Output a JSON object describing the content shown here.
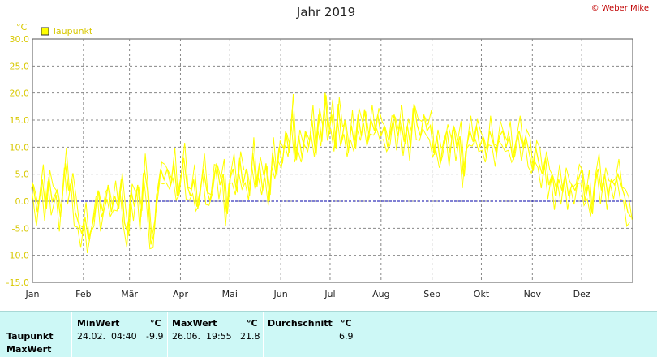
{
  "chart_data": {
    "type": "line",
    "title": "Jahr 2019",
    "copyright": "© Weber Mike",
    "ylabel": "°C",
    "ylim": [
      -15,
      30
    ],
    "yticks": [
      "-15.0",
      "-10.0",
      "-5.0",
      "0.0",
      "5.0",
      "10.0",
      "15.0",
      "20.0",
      "25.0",
      "30.0"
    ],
    "xlim": [
      0,
      365
    ],
    "months": [
      "Jan",
      "Feb",
      "Mär",
      "Apr",
      "Mai",
      "Jun",
      "Jul",
      "Aug",
      "Sep",
      "Okt",
      "Nov",
      "Dez"
    ],
    "month_start_day": [
      0,
      31,
      59,
      90,
      120,
      151,
      181,
      212,
      243,
      273,
      304,
      334
    ],
    "zero_line": 0,
    "grid": true,
    "legend": "top-left",
    "series": [
      {
        "name": "Taupunkt",
        "color": "#ffff00",
        "points": [
          [
            0,
            3.5
          ],
          [
            3,
            -2
          ],
          [
            6,
            4
          ],
          [
            8,
            -1
          ],
          [
            10,
            4.5
          ],
          [
            12,
            0
          ],
          [
            15,
            2
          ],
          [
            17,
            -3
          ],
          [
            20,
            7
          ],
          [
            22,
            2
          ],
          [
            24,
            4
          ],
          [
            26,
            -2
          ],
          [
            28,
            -4
          ],
          [
            30,
            -6
          ],
          [
            32,
            -3
          ],
          [
            34,
            -7
          ],
          [
            36,
            -5
          ],
          [
            38,
            -2
          ],
          [
            40,
            2
          ],
          [
            42,
            -3
          ],
          [
            44,
            -1
          ],
          [
            46,
            3
          ],
          [
            48,
            -2
          ],
          [
            50,
            1
          ],
          [
            52,
            -1
          ],
          [
            54,
            4
          ],
          [
            56,
            -4
          ],
          [
            58,
            -6
          ],
          [
            60,
            2
          ],
          [
            62,
            -1
          ],
          [
            64,
            3
          ],
          [
            66,
            -3
          ],
          [
            68,
            6
          ],
          [
            70,
            2
          ],
          [
            72,
            -8
          ],
          [
            74,
            -6
          ],
          [
            76,
            2
          ],
          [
            78,
            6
          ],
          [
            80,
            4
          ],
          [
            82,
            6
          ],
          [
            84,
            3
          ],
          [
            86,
            7
          ],
          [
            88,
            1
          ],
          [
            90,
            4
          ],
          [
            92,
            8
          ],
          [
            94,
            3
          ],
          [
            96,
            1
          ],
          [
            98,
            4
          ],
          [
            100,
            -1
          ],
          [
            102,
            2
          ],
          [
            104,
            6
          ],
          [
            106,
            2
          ],
          [
            108,
            0
          ],
          [
            110,
            4
          ],
          [
            112,
            7
          ],
          [
            114,
            3
          ],
          [
            116,
            5
          ],
          [
            118,
            -2
          ],
          [
            120,
            4
          ],
          [
            122,
            6
          ],
          [
            124,
            2
          ],
          [
            126,
            8
          ],
          [
            128,
            3
          ],
          [
            130,
            6
          ],
          [
            132,
            1
          ],
          [
            134,
            9
          ],
          [
            136,
            3
          ],
          [
            138,
            7
          ],
          [
            140,
            2
          ],
          [
            142,
            7
          ],
          [
            144,
            0
          ],
          [
            146,
            9
          ],
          [
            148,
            5
          ],
          [
            150,
            10
          ],
          [
            152,
            7
          ],
          [
            154,
            13
          ],
          [
            156,
            9
          ],
          [
            158,
            17
          ],
          [
            160,
            8
          ],
          [
            162,
            12
          ],
          [
            164,
            8
          ],
          [
            166,
            13
          ],
          [
            168,
            10
          ],
          [
            170,
            15
          ],
          [
            172,
            9
          ],
          [
            174,
            16
          ],
          [
            176,
            11
          ],
          [
            178,
            20
          ],
          [
            180,
            12
          ],
          [
            182,
            16
          ],
          [
            184,
            10
          ],
          [
            186,
            18
          ],
          [
            188,
            11
          ],
          [
            190,
            15
          ],
          [
            192,
            9
          ],
          [
            194,
            14
          ],
          [
            196,
            10
          ],
          [
            198,
            16
          ],
          [
            200,
            12
          ],
          [
            202,
            17
          ],
          [
            204,
            11
          ],
          [
            206,
            15
          ],
          [
            208,
            13
          ],
          [
            210,
            16
          ],
          [
            212,
            12
          ],
          [
            214,
            14
          ],
          [
            216,
            10
          ],
          [
            218,
            13
          ],
          [
            220,
            16
          ],
          [
            222,
            12
          ],
          [
            224,
            15
          ],
          [
            226,
            11
          ],
          [
            228,
            14
          ],
          [
            230,
            10
          ],
          [
            232,
            18
          ],
          [
            234,
            14
          ],
          [
            236,
            12
          ],
          [
            238,
            16
          ],
          [
            240,
            13
          ],
          [
            242,
            14
          ],
          [
            244,
            9
          ],
          [
            246,
            12
          ],
          [
            248,
            7
          ],
          [
            250,
            11
          ],
          [
            252,
            13
          ],
          [
            254,
            9
          ],
          [
            256,
            14
          ],
          [
            258,
            10
          ],
          [
            260,
            12
          ],
          [
            262,
            5
          ],
          [
            264,
            10
          ],
          [
            266,
            13
          ],
          [
            268,
            11
          ],
          [
            270,
            14
          ],
          [
            272,
            10
          ],
          [
            274,
            12
          ],
          [
            276,
            8
          ],
          [
            278,
            13
          ],
          [
            280,
            11
          ],
          [
            282,
            9
          ],
          [
            284,
            12
          ],
          [
            286,
            13
          ],
          [
            288,
            10
          ],
          [
            290,
            12
          ],
          [
            292,
            8
          ],
          [
            294,
            11
          ],
          [
            296,
            13
          ],
          [
            298,
            10
          ],
          [
            300,
            12
          ],
          [
            302,
            9
          ],
          [
            304,
            6
          ],
          [
            306,
            10
          ],
          [
            308,
            7
          ],
          [
            310,
            5
          ],
          [
            312,
            8
          ],
          [
            314,
            3
          ],
          [
            316,
            5
          ],
          [
            318,
            1
          ],
          [
            320,
            4
          ],
          [
            322,
            2
          ],
          [
            324,
            5
          ],
          [
            326,
            1
          ],
          [
            328,
            3
          ],
          [
            330,
            2
          ],
          [
            332,
            4
          ],
          [
            334,
            6
          ],
          [
            336,
            0
          ],
          [
            338,
            3
          ],
          [
            340,
            -2
          ],
          [
            342,
            4
          ],
          [
            344,
            6
          ],
          [
            346,
            2
          ],
          [
            348,
            5
          ],
          [
            350,
            1
          ],
          [
            352,
            4
          ],
          [
            354,
            3
          ],
          [
            356,
            5
          ],
          [
            358,
            3
          ],
          [
            360,
            1
          ],
          [
            362,
            -2
          ],
          [
            364,
            -3
          ]
        ]
      }
    ]
  },
  "stats": {
    "row_labels": [
      "Taupunkt",
      "MaxWert"
    ],
    "min_header": "MinWert",
    "min_unit": "°C",
    "min_date": "24.02.  04:40",
    "min_value": "-9.9",
    "max_header": "MaxWert",
    "max_unit": "°C",
    "max_date": "26.06.  19:55",
    "max_value": "21.8",
    "avg_header": "Durchschnitt",
    "avg_unit": "°C",
    "avg_value": "6.9"
  }
}
